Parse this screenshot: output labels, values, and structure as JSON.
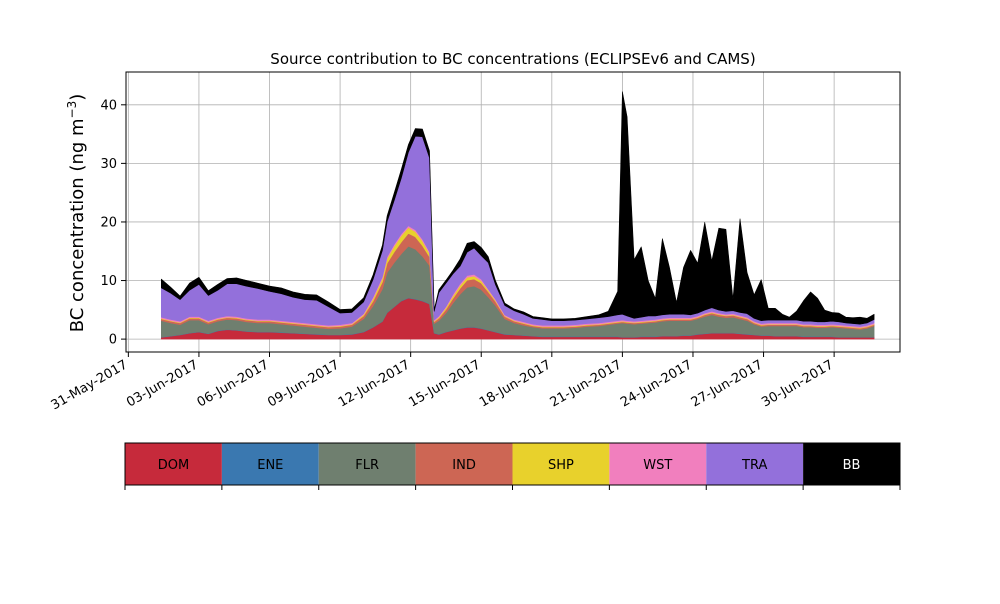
{
  "chart_data": {
    "type": "area",
    "stacked": true,
    "title": "Source contribution to BC concentrations (ECLIPSEv6 and CAMS)",
    "xlabel": "",
    "ylabel_main": "BC concentration (ng m",
    "ylabel_sup": "−3",
    "ylabel_close": ")",
    "ylim": [
      -2.2,
      45.6
    ],
    "xlim_day": [
      -0.1,
      32.8
    ],
    "grid": true,
    "y_ticks": [
      0,
      10,
      20,
      30,
      40
    ],
    "x_ticks": [
      {
        "day": 0,
        "label": "31-May-2017"
      },
      {
        "day": 3,
        "label": "03-Jun-2017"
      },
      {
        "day": 6,
        "label": "06-Jun-2017"
      },
      {
        "day": 9,
        "label": "09-Jun-2017"
      },
      {
        "day": 12,
        "label": "12-Jun-2017"
      },
      {
        "day": 15,
        "label": "15-Jun-2017"
      },
      {
        "day": 18,
        "label": "18-Jun-2017"
      },
      {
        "day": 21,
        "label": "21-Jun-2017"
      },
      {
        "day": 24,
        "label": "24-Jun-2017"
      },
      {
        "day": 27,
        "label": "27-Jun-2017"
      },
      {
        "day": 30,
        "label": "30-Jun-2017"
      }
    ],
    "x_day": [
      1.4,
      1.8,
      2.2,
      2.6,
      3.0,
      3.4,
      3.8,
      4.2,
      4.6,
      5.0,
      5.5,
      6.0,
      6.5,
      7.0,
      7.5,
      8.0,
      8.5,
      9.0,
      9.5,
      10.0,
      10.4,
      10.8,
      11.0,
      11.3,
      11.6,
      11.9,
      12.2,
      12.5,
      12.8,
      13.0,
      13.2,
      13.5,
      13.8,
      14.1,
      14.4,
      14.7,
      15.0,
      15.3,
      15.6,
      16.0,
      16.4,
      16.8,
      17.2,
      17.6,
      18.0,
      18.5,
      19.0,
      19.5,
      20.0,
      20.4,
      20.8,
      21.0,
      21.2,
      21.5,
      21.8,
      22.1,
      22.4,
      22.7,
      23.0,
      23.3,
      23.6,
      23.9,
      24.2,
      24.5,
      24.8,
      25.1,
      25.4,
      25.7,
      26.0,
      26.3,
      26.6,
      26.9,
      27.2,
      27.5,
      27.8,
      28.1,
      28.4,
      28.7,
      29.0,
      29.3,
      29.6,
      29.9,
      30.2,
      30.5,
      30.8,
      31.1,
      31.4,
      31.7
    ],
    "series": [
      {
        "name": "DOM",
        "color": "#c62a3b",
        "values": [
          0.3,
          0.5,
          0.7,
          1.0,
          1.2,
          0.9,
          1.4,
          1.6,
          1.5,
          1.3,
          1.2,
          1.2,
          1.1,
          1.0,
          0.9,
          0.8,
          0.7,
          0.7,
          0.8,
          1.2,
          2.0,
          3.0,
          4.5,
          5.5,
          6.5,
          7.0,
          6.8,
          6.5,
          6.0,
          1.0,
          0.8,
          1.2,
          1.5,
          1.8,
          2.0,
          2.0,
          1.8,
          1.5,
          1.2,
          0.8,
          0.7,
          0.6,
          0.5,
          0.4,
          0.4,
          0.4,
          0.4,
          0.4,
          0.4,
          0.4,
          0.4,
          0.3,
          0.3,
          0.3,
          0.4,
          0.4,
          0.4,
          0.5,
          0.5,
          0.5,
          0.6,
          0.6,
          0.8,
          0.9,
          1.0,
          1.0,
          1.0,
          1.0,
          0.9,
          0.8,
          0.7,
          0.6,
          0.6,
          0.5,
          0.5,
          0.5,
          0.5,
          0.4,
          0.4,
          0.4,
          0.4,
          0.4,
          0.3,
          0.3,
          0.3,
          0.3,
          0.3,
          0.3
        ]
      },
      {
        "name": "ENE",
        "color": "#3a78b0",
        "values": [
          0.05,
          0.05,
          0.05,
          0.05,
          0.05,
          0.05,
          0.05,
          0.05,
          0.05,
          0.05,
          0.05,
          0.05,
          0.05,
          0.05,
          0.05,
          0.05,
          0.05,
          0.05,
          0.05,
          0.05,
          0.05,
          0.05,
          0.05,
          0.05,
          0.05,
          0.05,
          0.05,
          0.05,
          0.05,
          0.05,
          0.05,
          0.05,
          0.05,
          0.05,
          0.05,
          0.05,
          0.05,
          0.05,
          0.05,
          0.05,
          0.05,
          0.05,
          0.05,
          0.05,
          0.05,
          0.05,
          0.05,
          0.05,
          0.05,
          0.05,
          0.05,
          0.05,
          0.05,
          0.05,
          0.05,
          0.05,
          0.05,
          0.05,
          0.05,
          0.05,
          0.05,
          0.05,
          0.05,
          0.05,
          0.05,
          0.05,
          0.05,
          0.05,
          0.05,
          0.05,
          0.05,
          0.05,
          0.05,
          0.05,
          0.05,
          0.05,
          0.05,
          0.05,
          0.05,
          0.05,
          0.05,
          0.05,
          0.05,
          0.05,
          0.05,
          0.05,
          0.05,
          0.05
        ]
      },
      {
        "name": "FLR",
        "color": "#6f7f6f",
        "values": [
          2.8,
          2.2,
          1.7,
          2.2,
          2.0,
          1.6,
          1.6,
          1.7,
          1.7,
          1.6,
          1.5,
          1.5,
          1.4,
          1.3,
          1.2,
          1.1,
          1.0,
          1.1,
          1.3,
          2.2,
          3.6,
          5.5,
          6.8,
          7.5,
          8.0,
          8.8,
          8.5,
          7.6,
          6.5,
          1.6,
          2.3,
          3.2,
          4.6,
          5.8,
          6.8,
          7.0,
          6.6,
          5.6,
          4.5,
          2.6,
          2.0,
          1.7,
          1.5,
          1.4,
          1.4,
          1.4,
          1.5,
          1.7,
          1.8,
          2.0,
          2.2,
          2.4,
          2.3,
          2.2,
          2.2,
          2.3,
          2.4,
          2.5,
          2.6,
          2.6,
          2.5,
          2.5,
          2.6,
          2.9,
          3.1,
          2.8,
          2.6,
          2.7,
          2.5,
          2.3,
          1.8,
          1.5,
          1.6,
          1.7,
          1.7,
          1.7,
          1.7,
          1.6,
          1.6,
          1.5,
          1.5,
          1.6,
          1.6,
          1.5,
          1.4,
          1.3,
          1.5,
          1.9
        ]
      },
      {
        "name": "IND",
        "color": "#cd6654",
        "values": [
          0.3,
          0.3,
          0.3,
          0.3,
          0.3,
          0.3,
          0.3,
          0.3,
          0.3,
          0.3,
          0.3,
          0.3,
          0.3,
          0.3,
          0.3,
          0.3,
          0.3,
          0.3,
          0.3,
          0.5,
          0.8,
          1.2,
          1.6,
          1.8,
          2.0,
          2.2,
          2.1,
          1.8,
          1.5,
          0.3,
          0.4,
          0.6,
          0.8,
          1.0,
          1.2,
          1.2,
          1.1,
          0.9,
          0.7,
          0.4,
          0.3,
          0.3,
          0.2,
          0.2,
          0.2,
          0.2,
          0.2,
          0.2,
          0.2,
          0.2,
          0.2,
          0.2,
          0.2,
          0.2,
          0.2,
          0.2,
          0.2,
          0.2,
          0.2,
          0.2,
          0.2,
          0.2,
          0.2,
          0.3,
          0.3,
          0.3,
          0.3,
          0.3,
          0.3,
          0.3,
          0.2,
          0.2,
          0.2,
          0.2,
          0.2,
          0.2,
          0.2,
          0.2,
          0.2,
          0.2,
          0.2,
          0.2,
          0.2,
          0.2,
          0.2,
          0.2,
          0.2,
          0.2
        ]
      },
      {
        "name": "SHP",
        "color": "#e8d12c",
        "values": [
          0.1,
          0.1,
          0.1,
          0.1,
          0.1,
          0.1,
          0.1,
          0.1,
          0.1,
          0.1,
          0.1,
          0.1,
          0.1,
          0.1,
          0.1,
          0.1,
          0.1,
          0.1,
          0.1,
          0.2,
          0.4,
          0.6,
          0.8,
          1.0,
          1.1,
          1.0,
          0.9,
          0.8,
          0.6,
          0.1,
          0.2,
          0.3,
          0.4,
          0.5,
          0.5,
          0.5,
          0.4,
          0.3,
          0.2,
          0.1,
          0.1,
          0.1,
          0.1,
          0.1,
          0.1,
          0.1,
          0.1,
          0.1,
          0.1,
          0.1,
          0.1,
          0.1,
          0.1,
          0.1,
          0.1,
          0.1,
          0.1,
          0.1,
          0.1,
          0.1,
          0.1,
          0.1,
          0.1,
          0.1,
          0.1,
          0.1,
          0.1,
          0.1,
          0.1,
          0.1,
          0.1,
          0.1,
          0.1,
          0.1,
          0.1,
          0.1,
          0.1,
          0.1,
          0.1,
          0.1,
          0.1,
          0.1,
          0.1,
          0.1,
          0.1,
          0.1,
          0.1,
          0.1
        ]
      },
      {
        "name": "WST",
        "color": "#f17fbe",
        "values": [
          0.2,
          0.2,
          0.2,
          0.2,
          0.2,
          0.2,
          0.2,
          0.2,
          0.2,
          0.2,
          0.2,
          0.2,
          0.2,
          0.2,
          0.2,
          0.2,
          0.2,
          0.2,
          0.2,
          0.2,
          0.3,
          0.3,
          0.3,
          0.3,
          0.3,
          0.3,
          0.3,
          0.3,
          0.3,
          0.2,
          0.2,
          0.2,
          0.3,
          0.3,
          0.3,
          0.3,
          0.3,
          0.2,
          0.2,
          0.2,
          0.2,
          0.2,
          0.2,
          0.2,
          0.2,
          0.2,
          0.2,
          0.2,
          0.2,
          0.2,
          0.2,
          0.2,
          0.2,
          0.2,
          0.2,
          0.2,
          0.2,
          0.2,
          0.2,
          0.2,
          0.2,
          0.2,
          0.2,
          0.2,
          0.2,
          0.2,
          0.2,
          0.2,
          0.2,
          0.2,
          0.2,
          0.2,
          0.2,
          0.2,
          0.2,
          0.2,
          0.2,
          0.2,
          0.2,
          0.2,
          0.2,
          0.2,
          0.2,
          0.2,
          0.2,
          0.2,
          0.2,
          0.2
        ]
      },
      {
        "name": "TRA",
        "color": "#9370db",
        "values": [
          5.0,
          4.5,
          3.7,
          4.5,
          5.5,
          4.3,
          4.7,
          5.5,
          5.6,
          5.5,
          5.3,
          4.8,
          4.6,
          4.2,
          4.0,
          4.1,
          3.2,
          2.0,
          1.8,
          2.0,
          3.0,
          4.5,
          6.0,
          7.5,
          9.5,
          12.5,
          16.0,
          17.5,
          16.0,
          1.5,
          4.0,
          4.0,
          3.5,
          3.0,
          4.0,
          4.5,
          4.0,
          4.5,
          2.5,
          1.6,
          1.5,
          1.3,
          1.0,
          1.0,
          0.8,
          0.8,
          0.8,
          0.8,
          0.9,
          0.9,
          1.0,
          1.0,
          0.8,
          0.5,
          0.6,
          0.7,
          0.6,
          0.6,
          0.6,
          0.6,
          0.6,
          0.5,
          0.5,
          0.5,
          0.6,
          0.5,
          0.5,
          0.5,
          0.5,
          0.6,
          0.5,
          0.5,
          0.5,
          0.5,
          0.5,
          0.5,
          0.5,
          0.5,
          0.5,
          0.5,
          0.5,
          0.5,
          0.5,
          0.4,
          0.4,
          0.4,
          0.4,
          0.6
        ]
      },
      {
        "name": "BB",
        "color": "#000000",
        "values": [
          1.5,
          1.0,
          0.6,
          1.2,
          1.2,
          0.8,
          1.0,
          0.9,
          1.0,
          1.0,
          0.9,
          0.9,
          1.0,
          0.9,
          0.9,
          0.9,
          0.8,
          0.6,
          0.6,
          0.7,
          0.8,
          0.9,
          1.0,
          1.3,
          1.5,
          1.3,
          1.3,
          1.3,
          1.2,
          0.3,
          0.5,
          0.5,
          0.6,
          1.2,
          1.5,
          1.1,
          1.4,
          1.0,
          0.7,
          0.4,
          0.3,
          0.4,
          0.3,
          0.3,
          0.3,
          0.3,
          0.3,
          0.4,
          0.5,
          0.9,
          4.0,
          38.0,
          34.0,
          10.0,
          12.0,
          6.0,
          3.0,
          13.0,
          8.0,
          2.0,
          8.0,
          11.0,
          8.5,
          15.0,
          8.0,
          14.0,
          14.0,
          2.0,
          16.0,
          7.0,
          4.0,
          7.0,
          2.0,
          2.0,
          1.0,
          0.5,
          1.5,
          3.5,
          5.0,
          4.0,
          2.0,
          1.5,
          1.5,
          1.0,
          1.0,
          1.2,
          0.8,
          0.9
        ]
      }
    ]
  },
  "legend": {
    "items": [
      {
        "name": "DOM",
        "color": "#c62a3b",
        "text_color": "#000000"
      },
      {
        "name": "ENE",
        "color": "#3a78b0",
        "text_color": "#000000"
      },
      {
        "name": "FLR",
        "color": "#6f7f6f",
        "text_color": "#000000"
      },
      {
        "name": "IND",
        "color": "#cd6654",
        "text_color": "#000000"
      },
      {
        "name": "SHP",
        "color": "#e8d12c",
        "text_color": "#000000"
      },
      {
        "name": "WST",
        "color": "#f17fbe",
        "text_color": "#000000"
      },
      {
        "name": "TRA",
        "color": "#9370db",
        "text_color": "#000000"
      },
      {
        "name": "BB",
        "color": "#000000",
        "text_color": "#ffffff"
      }
    ]
  }
}
